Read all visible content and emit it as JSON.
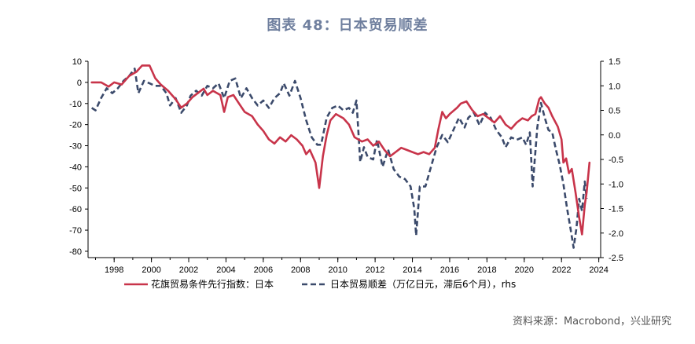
{
  "title": "图表 48：日本贸易顺差",
  "source": "资料来源：Macrobond，兴业研究",
  "chart_data": {
    "type": "line",
    "title": "图表 48：日本贸易顺差",
    "x_range": [
      1996.6,
      2024.1
    ],
    "x_ticks": [
      "1998",
      "2000",
      "2002",
      "2004",
      "2006",
      "2008",
      "2010",
      "2012",
      "2014",
      "2016",
      "2018",
      "2020",
      "2022",
      "2024"
    ],
    "left_axis": {
      "ylim": [
        -83,
        10
      ],
      "ticks": [
        10,
        0,
        -10,
        -20,
        -30,
        -40,
        -50,
        -60,
        -70,
        -80
      ]
    },
    "right_axis": {
      "ylim": [
        -2.5,
        1.5
      ],
      "ticks": [
        "1.5",
        "1.0",
        "0.5",
        "0.0",
        "-0.5",
        "-1.0",
        "-1.5",
        "-2.0",
        "-2.5"
      ]
    },
    "legend_position": "bottom",
    "series": [
      {
        "name": "花旗贸易条件先行指数：日本",
        "axis": "left",
        "color": "#c8344a",
        "style": "solid",
        "points": [
          [
            1996.8,
            0
          ],
          [
            1997.3,
            0
          ],
          [
            1997.7,
            -2
          ],
          [
            1998.0,
            0
          ],
          [
            1998.4,
            -1
          ],
          [
            1998.8,
            3
          ],
          [
            1999.2,
            5
          ],
          [
            1999.5,
            8
          ],
          [
            1999.9,
            8
          ],
          [
            2000.2,
            2
          ],
          [
            2000.5,
            -1
          ],
          [
            2000.9,
            -4
          ],
          [
            2001.3,
            -8
          ],
          [
            2001.6,
            -12
          ],
          [
            2001.9,
            -10
          ],
          [
            2002.2,
            -7
          ],
          [
            2002.5,
            -5
          ],
          [
            2002.8,
            -3
          ],
          [
            2003.0,
            -6
          ],
          [
            2003.3,
            -4
          ],
          [
            2003.7,
            -6
          ],
          [
            2003.9,
            -14
          ],
          [
            2004.1,
            -7
          ],
          [
            2004.4,
            -6
          ],
          [
            2004.7,
            -10
          ],
          [
            2005.0,
            -14
          ],
          [
            2005.4,
            -16
          ],
          [
            2005.7,
            -20
          ],
          [
            2006.0,
            -23
          ],
          [
            2006.3,
            -27
          ],
          [
            2006.6,
            -29
          ],
          [
            2006.9,
            -26
          ],
          [
            2007.2,
            -28
          ],
          [
            2007.5,
            -25
          ],
          [
            2007.8,
            -27
          ],
          [
            2008.1,
            -30
          ],
          [
            2008.3,
            -34
          ],
          [
            2008.5,
            -32
          ],
          [
            2008.8,
            -38
          ],
          [
            2009.0,
            -50
          ],
          [
            2009.2,
            -35
          ],
          [
            2009.4,
            -25
          ],
          [
            2009.6,
            -18
          ],
          [
            2009.9,
            -15
          ],
          [
            2010.3,
            -17
          ],
          [
            2010.6,
            -20
          ],
          [
            2010.9,
            -26
          ],
          [
            2011.3,
            -28
          ],
          [
            2011.6,
            -27
          ],
          [
            2011.9,
            -30
          ],
          [
            2012.2,
            -28
          ],
          [
            2012.5,
            -32
          ],
          [
            2012.8,
            -35
          ],
          [
            2013.1,
            -33
          ],
          [
            2013.4,
            -31
          ],
          [
            2013.7,
            -32
          ],
          [
            2014.0,
            -33
          ],
          [
            2014.3,
            -34
          ],
          [
            2014.6,
            -33
          ],
          [
            2014.9,
            -34
          ],
          [
            2015.2,
            -31
          ],
          [
            2015.4,
            -22
          ],
          [
            2015.6,
            -14
          ],
          [
            2015.8,
            -17
          ],
          [
            2016.0,
            -15
          ],
          [
            2016.4,
            -12
          ],
          [
            2016.6,
            -10
          ],
          [
            2016.9,
            -9
          ],
          [
            2017.2,
            -13
          ],
          [
            2017.5,
            -16
          ],
          [
            2017.8,
            -15
          ],
          [
            2018.1,
            -17
          ],
          [
            2018.4,
            -19
          ],
          [
            2018.7,
            -16
          ],
          [
            2019.0,
            -20
          ],
          [
            2019.3,
            -22
          ],
          [
            2019.6,
            -19
          ],
          [
            2019.9,
            -17
          ],
          [
            2020.2,
            -18
          ],
          [
            2020.4,
            -16
          ],
          [
            2020.6,
            -15
          ],
          [
            2020.8,
            -8
          ],
          [
            2020.9,
            -7
          ],
          [
            2021.1,
            -10
          ],
          [
            2021.3,
            -12
          ],
          [
            2021.5,
            -16
          ],
          [
            2021.8,
            -21
          ],
          [
            2022.0,
            -27
          ],
          [
            2022.1,
            -38
          ],
          [
            2022.25,
            -36
          ],
          [
            2022.4,
            -43
          ],
          [
            2022.55,
            -41
          ],
          [
            2022.75,
            -52
          ],
          [
            2022.95,
            -64
          ],
          [
            2023.1,
            -72
          ],
          [
            2023.25,
            -58
          ],
          [
            2023.35,
            -52
          ],
          [
            2023.5,
            -38
          ]
        ]
      },
      {
        "name": "日本贸易顺差（万亿日元，滞后6个月），rhs",
        "axis": "right",
        "color": "#3b4a6b",
        "style": "dashed",
        "points": [
          [
            1996.8,
            0.55
          ],
          [
            1997.0,
            0.5
          ],
          [
            1997.3,
            0.75
          ],
          [
            1997.6,
            0.95
          ],
          [
            1997.9,
            0.85
          ],
          [
            1998.2,
            0.95
          ],
          [
            1998.5,
            1.1
          ],
          [
            1998.8,
            1.2
          ],
          [
            1999.1,
            1.35
          ],
          [
            1999.3,
            0.85
          ],
          [
            1999.6,
            1.1
          ],
          [
            1999.9,
            1.05
          ],
          [
            2000.2,
            1.0
          ],
          [
            2000.5,
            1.0
          ],
          [
            2000.8,
            0.85
          ],
          [
            2001.0,
            0.6
          ],
          [
            2001.3,
            0.75
          ],
          [
            2001.6,
            0.45
          ],
          [
            2001.9,
            0.6
          ],
          [
            2002.1,
            0.8
          ],
          [
            2002.4,
            0.9
          ],
          [
            2002.7,
            0.8
          ],
          [
            2003.0,
            1.0
          ],
          [
            2003.3,
            0.95
          ],
          [
            2003.6,
            1.05
          ],
          [
            2003.9,
            0.75
          ],
          [
            2004.2,
            1.1
          ],
          [
            2004.5,
            1.15
          ],
          [
            2004.8,
            0.75
          ],
          [
            2005.1,
            0.95
          ],
          [
            2005.4,
            0.75
          ],
          [
            2005.7,
            0.6
          ],
          [
            2006.0,
            0.7
          ],
          [
            2006.3,
            0.55
          ],
          [
            2006.6,
            0.75
          ],
          [
            2006.9,
            0.85
          ],
          [
            2007.1,
            1.05
          ],
          [
            2007.4,
            0.8
          ],
          [
            2007.7,
            1.1
          ],
          [
            2008.0,
            0.75
          ],
          [
            2008.3,
            0.3
          ],
          [
            2008.6,
            -0.05
          ],
          [
            2008.9,
            -0.2
          ],
          [
            2009.1,
            -0.2
          ],
          [
            2009.4,
            0.35
          ],
          [
            2009.7,
            0.55
          ],
          [
            2010.0,
            0.6
          ],
          [
            2010.3,
            0.5
          ],
          [
            2010.6,
            0.55
          ],
          [
            2010.8,
            0.45
          ],
          [
            2011.0,
            0.7
          ],
          [
            2011.2,
            -0.55
          ],
          [
            2011.4,
            -0.25
          ],
          [
            2011.6,
            -0.45
          ],
          [
            2011.9,
            -0.5
          ],
          [
            2012.1,
            -0.1
          ],
          [
            2012.4,
            -0.65
          ],
          [
            2012.7,
            -0.3
          ],
          [
            2013.0,
            -0.7
          ],
          [
            2013.3,
            -0.85
          ],
          [
            2013.6,
            -0.9
          ],
          [
            2013.9,
            -1.05
          ],
          [
            2014.1,
            -1.5
          ],
          [
            2014.2,
            -2.05
          ],
          [
            2014.4,
            -1.05
          ],
          [
            2014.7,
            -1.05
          ],
          [
            2015.0,
            -0.65
          ],
          [
            2015.3,
            -0.25
          ],
          [
            2015.6,
            0.0
          ],
          [
            2015.9,
            -0.15
          ],
          [
            2016.2,
            0.1
          ],
          [
            2016.5,
            0.35
          ],
          [
            2016.8,
            0.15
          ],
          [
            2017.0,
            0.35
          ],
          [
            2017.3,
            0.45
          ],
          [
            2017.6,
            0.2
          ],
          [
            2017.9,
            0.45
          ],
          [
            2018.2,
            0.35
          ],
          [
            2018.5,
            0.1
          ],
          [
            2018.8,
            -0.05
          ],
          [
            2019.0,
            -0.25
          ],
          [
            2019.3,
            -0.05
          ],
          [
            2019.6,
            -0.1
          ],
          [
            2019.9,
            -0.05
          ],
          [
            2020.1,
            -0.2
          ],
          [
            2020.3,
            0.05
          ],
          [
            2020.45,
            -1.05
          ],
          [
            2020.7,
            0.15
          ],
          [
            2020.9,
            0.65
          ],
          [
            2021.1,
            0.35
          ],
          [
            2021.3,
            0.1
          ],
          [
            2021.5,
            0.05
          ],
          [
            2021.7,
            -0.3
          ],
          [
            2021.9,
            -0.6
          ],
          [
            2022.1,
            -1.0
          ],
          [
            2022.3,
            -1.5
          ],
          [
            2022.5,
            -1.95
          ],
          [
            2022.65,
            -2.3
          ],
          [
            2022.8,
            -1.9
          ],
          [
            2022.95,
            -1.3
          ],
          [
            2023.1,
            -1.55
          ],
          [
            2023.25,
            -0.95
          ],
          [
            2023.35,
            -1.3
          ]
        ]
      }
    ]
  }
}
